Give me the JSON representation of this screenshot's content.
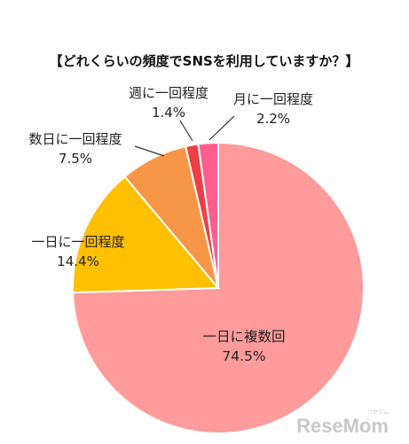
{
  "chart_data": {
    "type": "pie",
    "title": "【どれくらいの頻度でSNSを利用していますか？】",
    "slices": [
      {
        "label": "一日に複数回",
        "value": 74.5,
        "value_label": "74.5%",
        "color": "#ff9b9b"
      },
      {
        "label": "一日に一回程度",
        "value": 14.4,
        "value_label": "14.4%",
        "color": "#ffc000"
      },
      {
        "label": "数日に一回程度",
        "value": 7.5,
        "value_label": "7.5%",
        "color": "#f79646"
      },
      {
        "label": "週に一回程度",
        "value": 1.4,
        "value_label": "1.4%",
        "color": "#ee3f47"
      },
      {
        "label": "月に一回程度",
        "value": 2.2,
        "value_label": "2.2%",
        "color": "#ff5e8e"
      }
    ],
    "start_angle_deg": 0,
    "direction": "clockwise"
  },
  "watermark": {
    "text": "ReseMom",
    "subtext": "リセマム"
  }
}
